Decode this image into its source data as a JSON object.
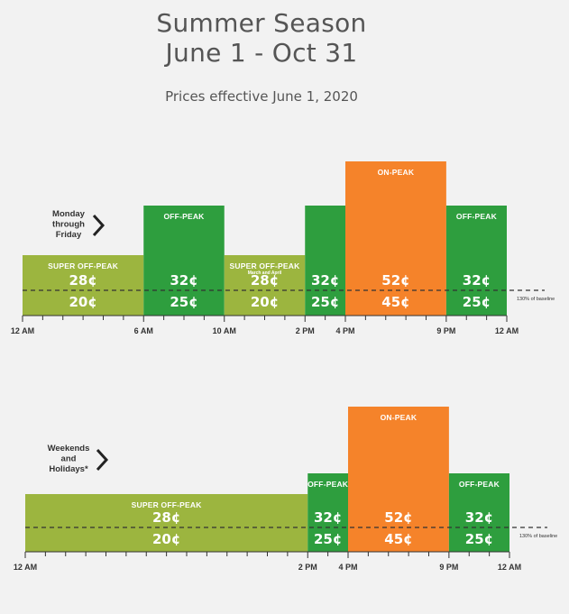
{
  "header": {
    "title_line1": "Summer Season",
    "title_line2": "June 1 - Oct 31",
    "subtitle": "Prices effective June 1, 2020"
  },
  "colors": {
    "super_off_peak": "#9cb53f",
    "off_peak": "#2e9e3e",
    "on_peak": "#f5832a",
    "dashed_line": "#333333"
  },
  "chart_data": [
    {
      "type": "bar",
      "panel": "weekday",
      "day_label": [
        "Monday",
        "through",
        "Friday"
      ],
      "x_unit": "hour of day",
      "tick_labels": [
        {
          "hour": 0,
          "label": "12 AM"
        },
        {
          "hour": 6,
          "label": "6 AM"
        },
        {
          "hour": 10,
          "label": "10 AM"
        },
        {
          "hour": 14,
          "label": "2 PM"
        },
        {
          "hour": 16,
          "label": "4 PM"
        },
        {
          "hour": 21,
          "label": "9 PM"
        },
        {
          "hour": 24,
          "label": "12 AM"
        }
      ],
      "baseline_label": "130% of baseline",
      "periods": [
        {
          "start": 0,
          "end": 6,
          "type": "super_off_peak",
          "label": "SUPER OFF-PEAK",
          "sublabel": "",
          "price_above": "28¢",
          "price_below": "20¢"
        },
        {
          "start": 6,
          "end": 10,
          "type": "off_peak",
          "label": "OFF-PEAK",
          "sublabel": "",
          "price_above": "32¢",
          "price_below": "25¢"
        },
        {
          "start": 10,
          "end": 14,
          "type": "super_off_peak",
          "label": "SUPER OFF-PEAK",
          "sublabel": "March and April",
          "price_above": "28¢",
          "price_below": "20¢"
        },
        {
          "start": 14,
          "end": 16,
          "type": "off_peak",
          "label": "",
          "sublabel": "",
          "price_above": "32¢",
          "price_below": "25¢"
        },
        {
          "start": 16,
          "end": 21,
          "type": "on_peak",
          "label": "ON-PEAK",
          "sublabel": "",
          "price_above": "52¢",
          "price_below": "45¢"
        },
        {
          "start": 21,
          "end": 24,
          "type": "off_peak",
          "label": "OFF-PEAK",
          "sublabel": "",
          "price_above": "32¢",
          "price_below": "25¢"
        }
      ]
    },
    {
      "type": "bar",
      "panel": "weekend",
      "day_label": [
        "Weekends",
        "and",
        "Holidays*"
      ],
      "x_unit": "hour of day",
      "tick_labels": [
        {
          "hour": 0,
          "label": "12 AM"
        },
        {
          "hour": 14,
          "label": "2 PM"
        },
        {
          "hour": 16,
          "label": "4 PM"
        },
        {
          "hour": 21,
          "label": "9 PM"
        },
        {
          "hour": 24,
          "label": "12 AM"
        }
      ],
      "baseline_label": "130% of baseline",
      "periods": [
        {
          "start": 0,
          "end": 14,
          "type": "super_off_peak",
          "label": "SUPER OFF-PEAK",
          "sublabel": "",
          "price_above": "28¢",
          "price_below": "20¢"
        },
        {
          "start": 14,
          "end": 16,
          "type": "off_peak",
          "label": "OFF-PEAK",
          "sublabel": "",
          "price_above": "32¢",
          "price_below": "25¢"
        },
        {
          "start": 16,
          "end": 21,
          "type": "on_peak",
          "label": "ON-PEAK",
          "sublabel": "",
          "price_above": "52¢",
          "price_below": "45¢"
        },
        {
          "start": 21,
          "end": 24,
          "type": "off_peak",
          "label": "OFF-PEAK",
          "sublabel": "",
          "price_above": "32¢",
          "price_below": "25¢"
        }
      ]
    }
  ]
}
